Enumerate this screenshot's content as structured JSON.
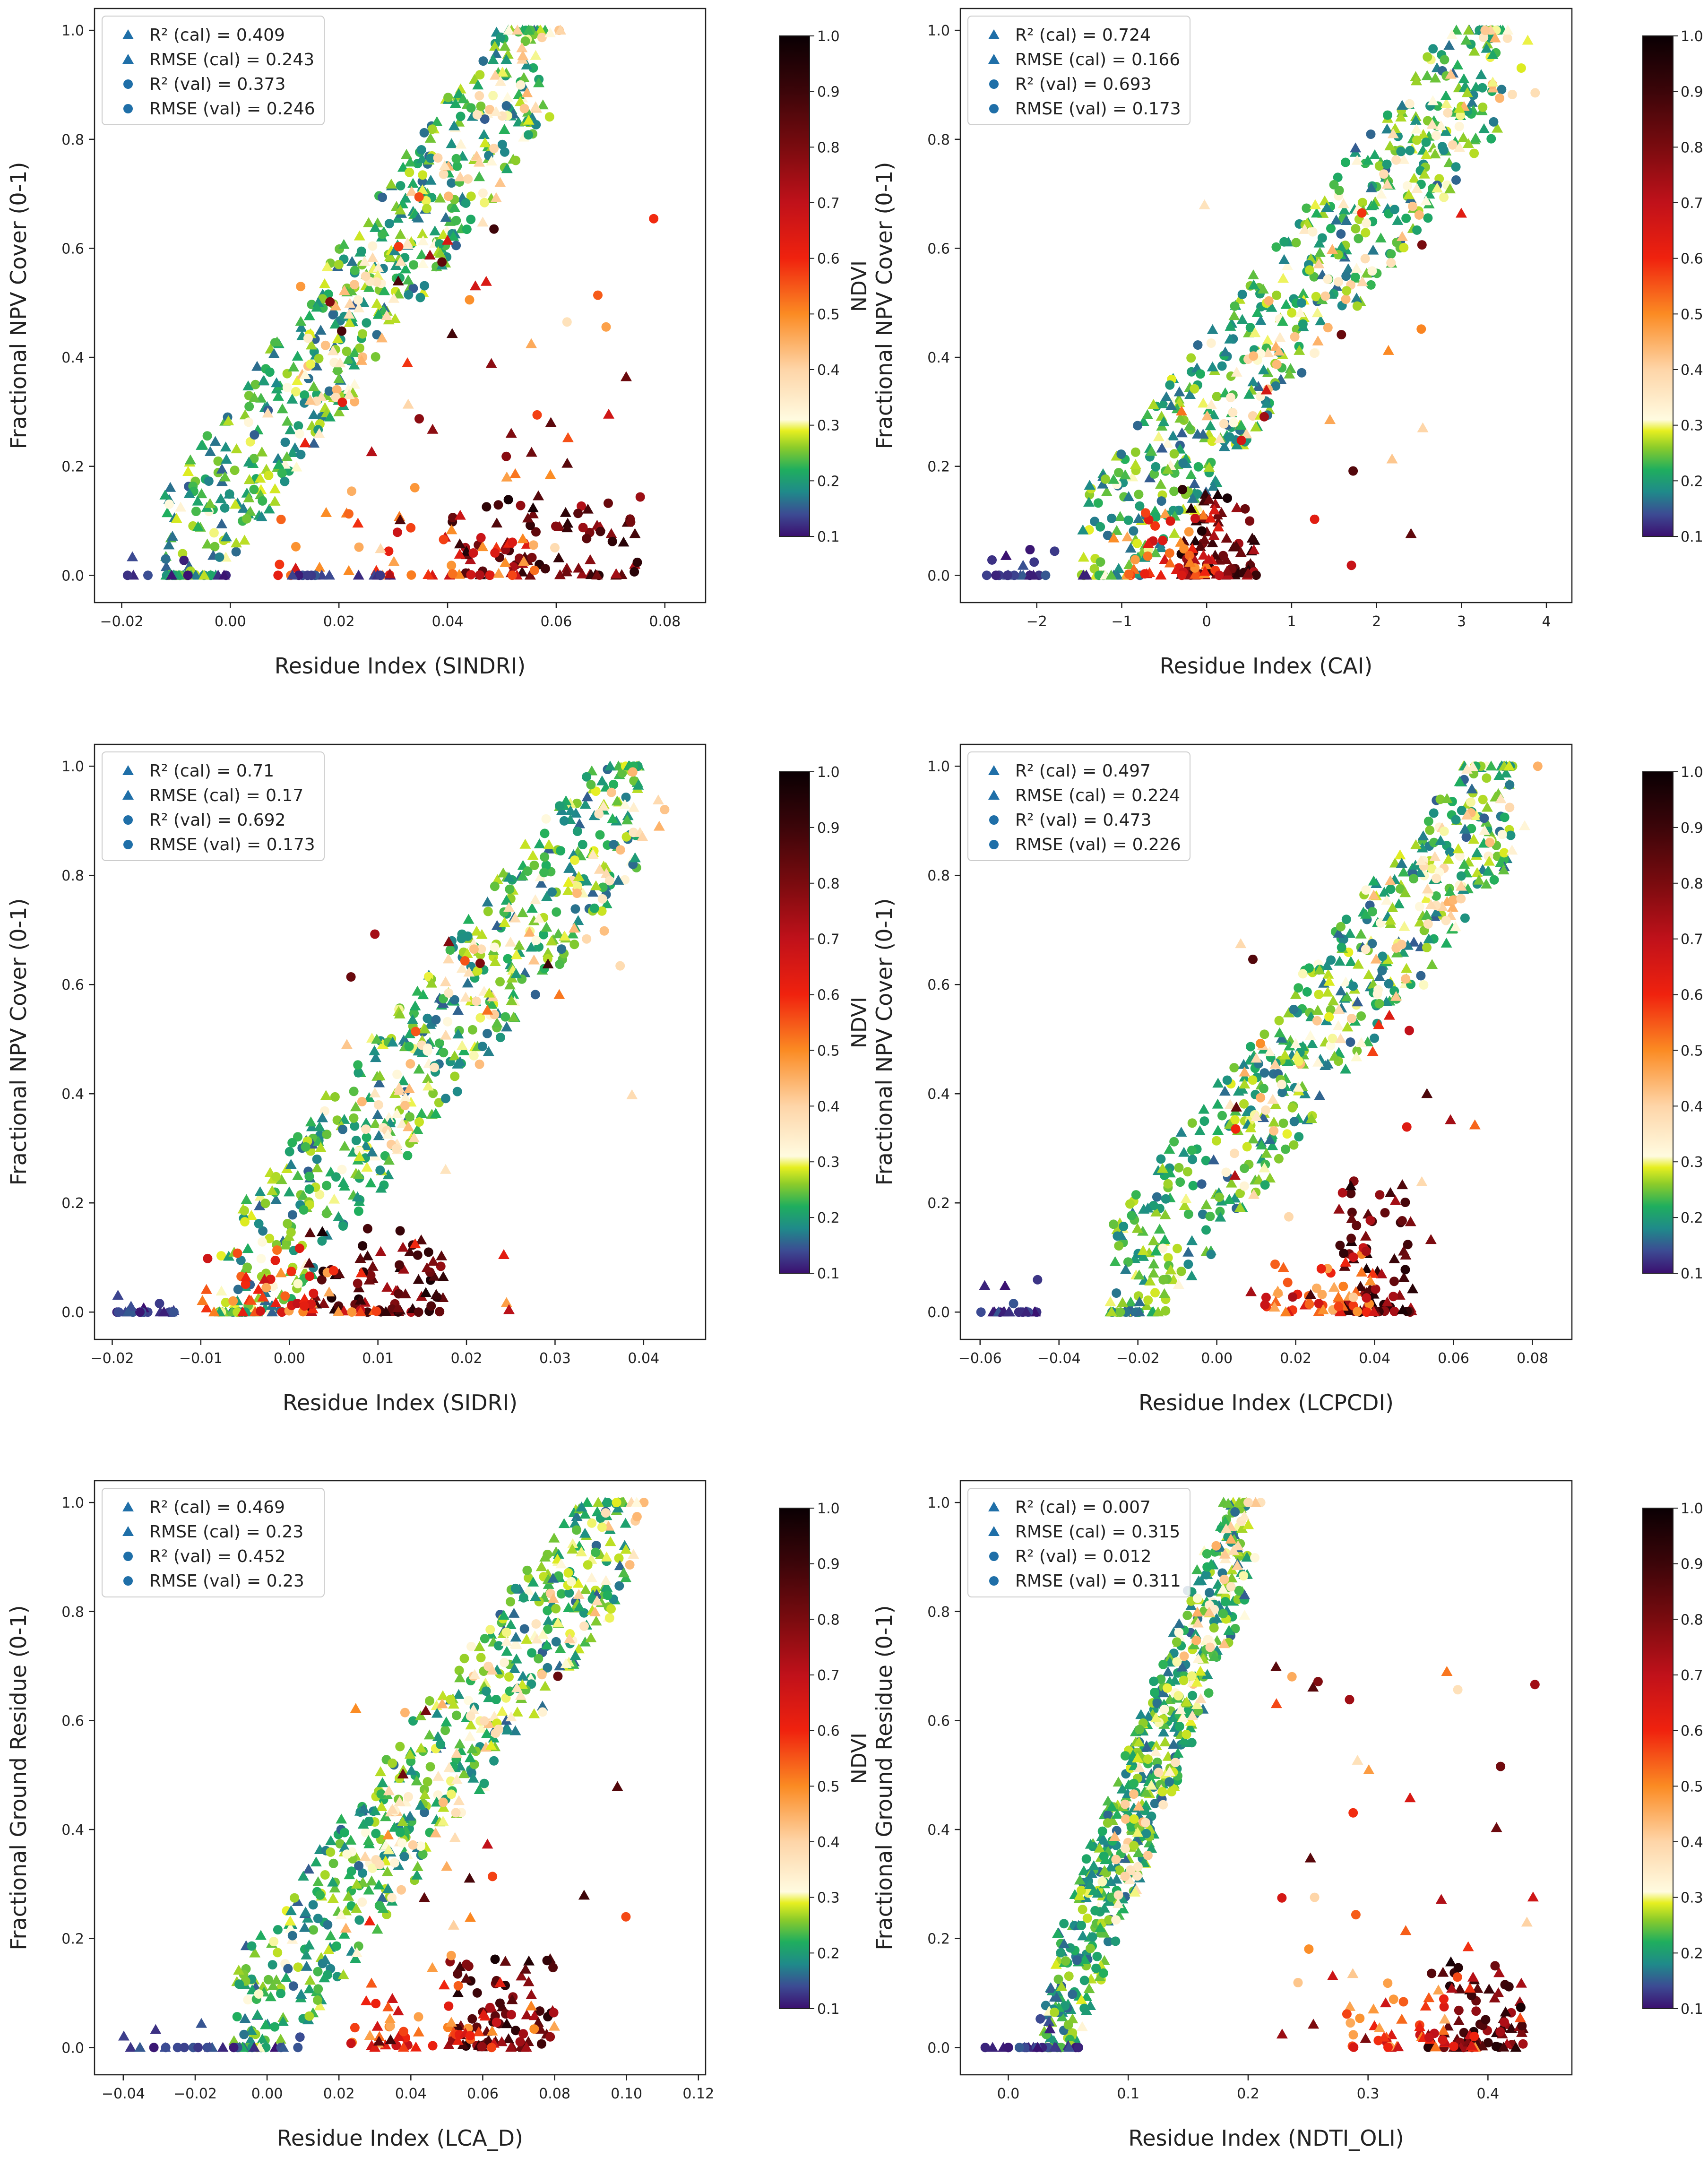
{
  "colorbar": {
    "label": "NDVI",
    "ticks": [
      "0.1",
      "0.2",
      "0.3",
      "0.4",
      "0.5",
      "0.6",
      "0.7",
      "0.8",
      "0.9",
      "1.0"
    ],
    "stops": [
      {
        "v": 0.1,
        "c": "#3b0f6f"
      },
      {
        "v": 0.14,
        "c": "#3c4b93"
      },
      {
        "v": 0.18,
        "c": "#1f8a8a"
      },
      {
        "v": 0.22,
        "c": "#1fae5e"
      },
      {
        "v": 0.26,
        "c": "#8ccc2a"
      },
      {
        "v": 0.29,
        "c": "#e6ef20"
      },
      {
        "v": 0.31,
        "c": "#fffbe0"
      },
      {
        "v": 0.4,
        "c": "#fed5a8"
      },
      {
        "v": 0.5,
        "c": "#fb8b23"
      },
      {
        "v": 0.6,
        "c": "#f0220e"
      },
      {
        "v": 0.7,
        "c": "#c0111a"
      },
      {
        "v": 0.8,
        "c": "#7a0b0f"
      },
      {
        "v": 0.9,
        "c": "#3c0509"
      },
      {
        "v": 1.0,
        "c": "#0a0003"
      }
    ]
  },
  "chart_data": [
    {
      "type": "scatter",
      "xlabel": "Residue Index (SINDRI)",
      "ylabel": "Fractional NPV Cover (0-1)",
      "xlim": [
        -0.025,
        0.0875
      ],
      "ylim": [
        -0.05,
        1.04
      ],
      "xticks": [
        "-0.02",
        "0.00",
        "0.02",
        "0.04",
        "0.06",
        "0.08"
      ],
      "yticks": [
        "0.0",
        "0.2",
        "0.4",
        "0.6",
        "0.8",
        "1.0"
      ],
      "legend": [
        {
          "marker": "triangle",
          "text": "R² (cal) = 0.409"
        },
        {
          "marker": "triangle",
          "text": "RMSE (cal) = 0.243"
        },
        {
          "marker": "circle",
          "text": "R² (val) = 0.373"
        },
        {
          "marker": "circle",
          "text": "RMSE (val) = 0.246"
        }
      ],
      "trend": {
        "x0": -0.012,
        "x1": 0.058,
        "k": 14.8
      },
      "cluster": {
        "x0": 0.04,
        "x1": 0.075,
        "ymax": 0.14
      },
      "zero_row": {
        "x0": -0.02,
        "x1": 0.03
      },
      "outliers": {
        "x0": 0.01,
        "x1": 0.08,
        "n": 50
      }
    },
    {
      "type": "scatter",
      "xlabel": "Residue Index (CAI)",
      "ylabel": "Fractional NPV Cover (0-1)",
      "xlim": [
        -2.9,
        4.3
      ],
      "ylim": [
        -0.05,
        1.04
      ],
      "xticks": [
        "-2",
        "-1",
        "0",
        "1",
        "2",
        "3",
        "4"
      ],
      "yticks": [
        "0.0",
        "0.2",
        "0.4",
        "0.6",
        "0.8",
        "1.0"
      ],
      "legend": [
        {
          "marker": "triangle",
          "text": "R² (cal) = 0.724"
        },
        {
          "marker": "triangle",
          "text": "RMSE (cal) = 0.166"
        },
        {
          "marker": "circle",
          "text": "R² (val) = 0.693"
        },
        {
          "marker": "circle",
          "text": "RMSE (val) = 0.173"
        }
      ],
      "trend": {
        "x0": -1.5,
        "x1": 3.5,
        "k": 1.0
      },
      "cluster": {
        "x0": -0.3,
        "x1": 0.6,
        "ymax": 0.16
      },
      "zero_row": {
        "x0": -2.6,
        "x1": -1.2
      },
      "outliers": {
        "x0": -0.5,
        "x1": 3.0,
        "n": 20
      }
    },
    {
      "type": "scatter",
      "xlabel": "Residue Index (SIDRI)",
      "ylabel": "Fractional NPV Cover (0-1)",
      "xlim": [
        -0.022,
        0.047
      ],
      "ylim": [
        -0.05,
        1.04
      ],
      "xticks": [
        "-0.02",
        "-0.01",
        "0.00",
        "0.01",
        "0.02",
        "0.03",
        "0.04"
      ],
      "yticks": [
        "0.0",
        "0.2",
        "0.4",
        "0.6",
        "0.8",
        "1.0"
      ],
      "legend": [
        {
          "marker": "triangle",
          "text": "R² (cal) = 0.71"
        },
        {
          "marker": "triangle",
          "text": "RMSE (cal) = 0.17"
        },
        {
          "marker": "circle",
          "text": "R² (val) = 0.692"
        },
        {
          "marker": "circle",
          "text": "RMSE (val) = 0.173"
        }
      ],
      "trend": {
        "x0": -0.008,
        "x1": 0.04,
        "k": 21.0
      },
      "cluster": {
        "x0": 0.002,
        "x1": 0.018,
        "ymax": 0.16
      },
      "zero_row": {
        "x0": -0.02,
        "x1": -0.013
      },
      "outliers": {
        "x0": 0.005,
        "x1": 0.04,
        "n": 20
      }
    },
    {
      "type": "scatter",
      "xlabel": "Residue Index (LCPCDI)",
      "ylabel": "Fractional NPV Cover (0-1)",
      "xlim": [
        -0.065,
        0.09
      ],
      "ylim": [
        -0.05,
        1.04
      ],
      "xticks": [
        "-0.06",
        "-0.04",
        "-0.02",
        "0.00",
        "0.02",
        "0.04",
        "0.06",
        "0.08"
      ],
      "yticks": [
        "0.0",
        "0.2",
        "0.4",
        "0.6",
        "0.8",
        "1.0"
      ],
      "legend": [
        {
          "marker": "triangle",
          "text": "R² (cal) = 0.497"
        },
        {
          "marker": "triangle",
          "text": "RMSE (cal) = 0.224"
        },
        {
          "marker": "circle",
          "text": "R² (val) = 0.473"
        },
        {
          "marker": "circle",
          "text": "RMSE (val) = 0.226"
        }
      ],
      "trend": {
        "x0": -0.028,
        "x1": 0.075,
        "k": 10.0
      },
      "cluster": {
        "x0": 0.03,
        "x1": 0.05,
        "ymax": 0.24
      },
      "zero_row": {
        "x0": -0.06,
        "x1": -0.044
      },
      "outliers": {
        "x0": 0.0,
        "x1": 0.07,
        "n": 25
      }
    },
    {
      "type": "scatter",
      "xlabel": "Residue Index (LCA_D)",
      "ylabel": "Fractional Ground Residue (0-1)",
      "xlim": [
        -0.048,
        0.122
      ],
      "ylim": [
        -0.05,
        1.04
      ],
      "xticks": [
        "-0.04",
        "-0.02",
        "0.00",
        "0.02",
        "0.04",
        "0.06",
        "0.08",
        "0.10",
        "0.12"
      ],
      "yticks": [
        "0.0",
        "0.2",
        "0.4",
        "0.6",
        "0.8",
        "1.0"
      ],
      "legend": [
        {
          "marker": "triangle",
          "text": "R² (cal) = 0.469"
        },
        {
          "marker": "triangle",
          "text": "RMSE (cal) = 0.23"
        },
        {
          "marker": "circle",
          "text": "R² (val) = 0.452"
        },
        {
          "marker": "circle",
          "text": "RMSE (val) = 0.23"
        }
      ],
      "trend": {
        "x0": -0.01,
        "x1": 0.1,
        "k": 9.0
      },
      "cluster": {
        "x0": 0.05,
        "x1": 0.08,
        "ymax": 0.18
      },
      "zero_row": {
        "x0": -0.04,
        "x1": 0.01
      },
      "outliers": {
        "x0": 0.02,
        "x1": 0.1,
        "n": 25
      }
    },
    {
      "type": "scatter",
      "xlabel": "Residue Index (NDTI_OLI)",
      "ylabel": "Fractional Ground Residue (0-1)",
      "xlim": [
        -0.04,
        0.47
      ],
      "ylim": [
        -0.05,
        1.04
      ],
      "xticks": [
        "0.0",
        "0.1",
        "0.2",
        "0.3",
        "0.4"
      ],
      "yticks": [
        "0.0",
        "0.2",
        "0.4",
        "0.6",
        "0.8",
        "1.0"
      ],
      "legend": [
        {
          "marker": "triangle",
          "text": "R² (cal) = 0.007"
        },
        {
          "marker": "triangle",
          "text": "RMSE (cal) = 0.315"
        },
        {
          "marker": "circle",
          "text": "R² (val) = 0.012"
        },
        {
          "marker": "circle",
          "text": "RMSE (val) = 0.311"
        }
      ],
      "trend": {
        "x0": 0.03,
        "x1": 0.2,
        "k": 6.5
      },
      "cluster": {
        "x0": 0.35,
        "x1": 0.43,
        "ymax": 0.16
      },
      "zero_row": {
        "x0": -0.02,
        "x1": 0.06
      },
      "outliers": {
        "x0": 0.2,
        "x1": 0.45,
        "n": 35
      }
    }
  ]
}
